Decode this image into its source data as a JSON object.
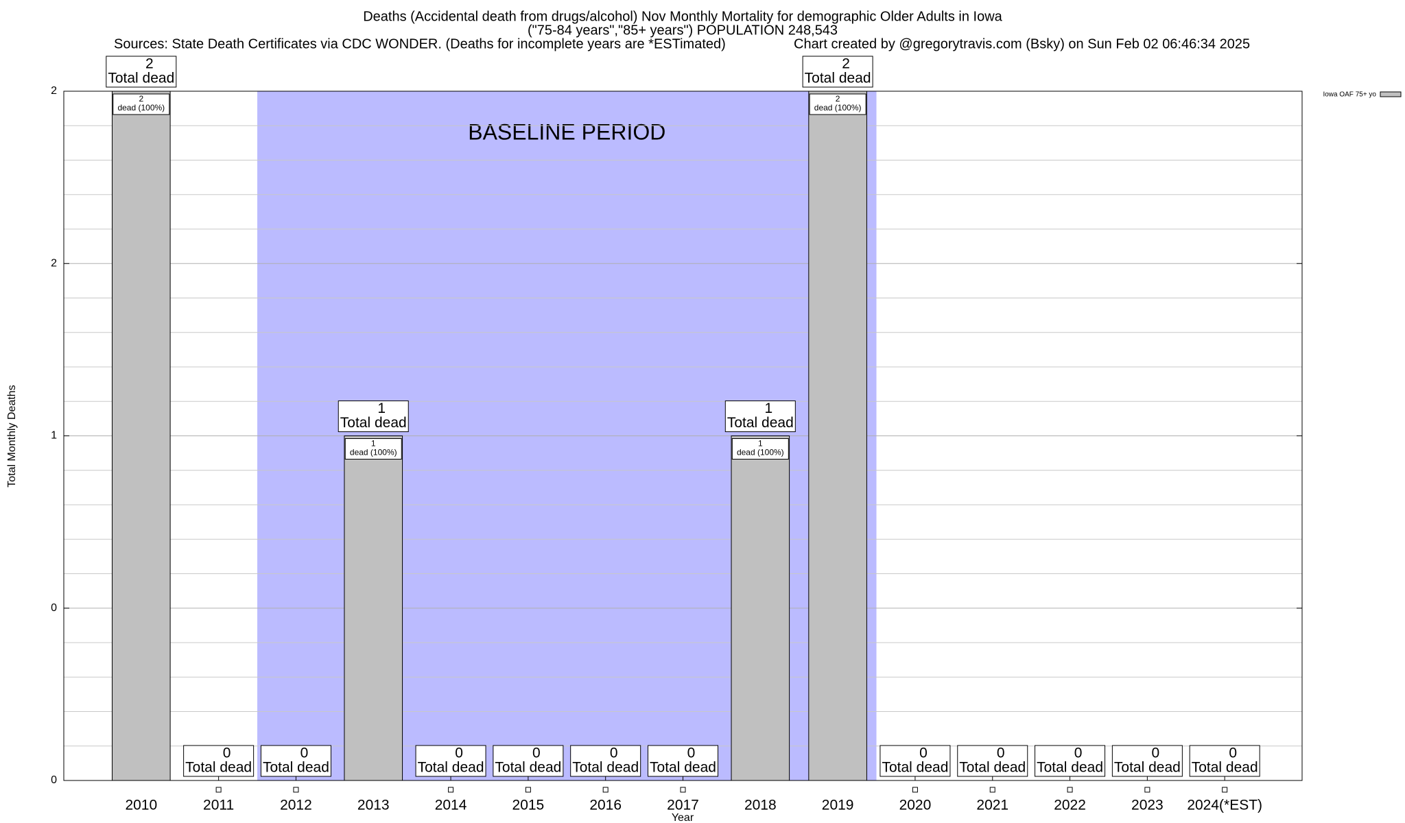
{
  "chart_data": {
    "type": "bar",
    "title": "Deaths (Accidental death from drugs/alcohol) Nov Monthly Mortality for demographic Older Adults in Iowa",
    "subtitle": "(\"75-84 years\",\"85+ years\") POPULATION 248,543",
    "sources": "Sources: State Death Certificates via CDC WONDER. (Deaths for incomplete years are *ESTimated)",
    "credit": "Chart created by @gregorytravis.com (Bsky) on Sun Feb 02 06:46:34 2025",
    "xlabel": "Year",
    "ylabel": "Total Monthly Deaths",
    "categories": [
      "2010",
      "2011",
      "2012",
      "2013",
      "2014",
      "2015",
      "2016",
      "2017",
      "2018",
      "2019",
      "2020",
      "2021",
      "2022",
      "2023",
      "2024(*EST)"
    ],
    "series": [
      {
        "name": "Iowa OAF 75+ yo",
        "color": "#c0c0c0",
        "values": [
          2,
          0,
          0,
          1,
          0,
          0,
          0,
          0,
          1,
          2,
          0,
          0,
          0,
          0,
          0
        ]
      }
    ],
    "total_label": "Total dead",
    "inner_labels": [
      "dead (100%)",
      null,
      null,
      "dead (100%)",
      null,
      null,
      null,
      null,
      "dead (100%)",
      "dead (100%)",
      null,
      null,
      null,
      null,
      null
    ],
    "ylim": [
      0,
      2
    ],
    "yticks": [
      0,
      {
        "value": 0.5,
        "label": "0"
      },
      1,
      {
        "value": 1.5,
        "label": "2"
      },
      2
    ],
    "grid": true,
    "legend": "top-right",
    "baseline": {
      "label": "BASELINE PERIOD",
      "start": "2012",
      "end": "2019",
      "color": "#bbbbff"
    }
  }
}
